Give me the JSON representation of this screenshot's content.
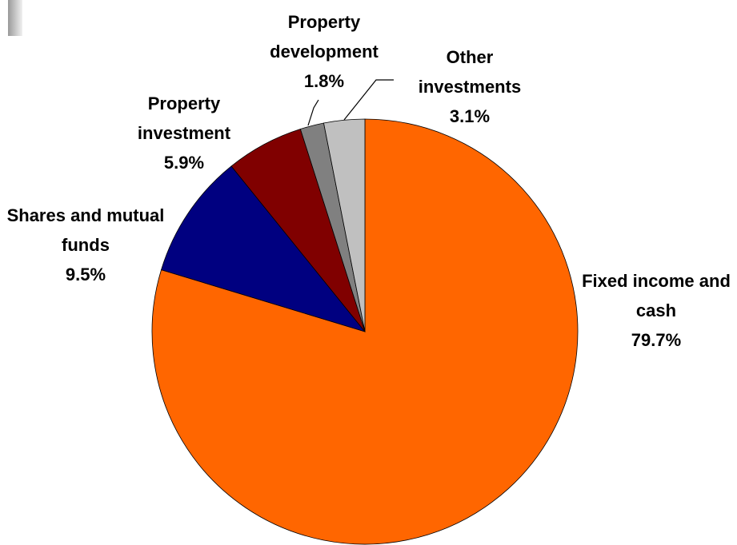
{
  "chart_data": {
    "type": "pie",
    "categories": [
      "Fixed income and cash",
      "Shares and mutual funds",
      "Property investment",
      "Property development",
      "Other investments"
    ],
    "values": [
      79.7,
      9.5,
      5.9,
      1.8,
      3.1
    ],
    "value_labels": [
      "79.7%",
      "9.5%",
      "5.9%",
      "1.8%",
      "3.1%"
    ],
    "colors": [
      "#ff6600",
      "#000080",
      "#800000",
      "#808080",
      "#c0c0c0"
    ]
  }
}
